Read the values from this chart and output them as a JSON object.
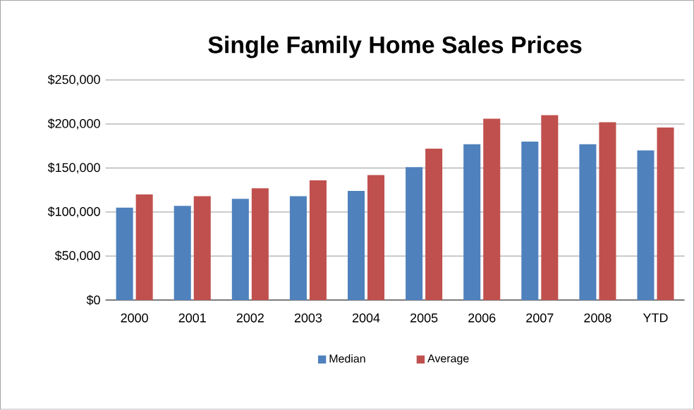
{
  "chart_data": {
    "type": "bar",
    "title": "Single Family Home Sales Prices",
    "categories": [
      "2000",
      "2001",
      "2002",
      "2003",
      "2004",
      "2005",
      "2006",
      "2007",
      "2008",
      "YTD"
    ],
    "series": [
      {
        "name": "Median",
        "color": "#4f81bd",
        "values": [
          105000,
          107000,
          115000,
          118000,
          124000,
          151000,
          177000,
          180000,
          177000,
          170000
        ]
      },
      {
        "name": "Average",
        "color": "#c0504d",
        "values": [
          120000,
          118000,
          127000,
          136000,
          142000,
          172000,
          206000,
          210000,
          202000,
          196000
        ]
      }
    ],
    "ylim": [
      0,
      250000
    ],
    "yticks": [
      {
        "value": 0,
        "label": "$0"
      },
      {
        "value": 50000,
        "label": "$50,000"
      },
      {
        "value": 100000,
        "label": "$100,000"
      },
      {
        "value": 150000,
        "label": "$150,000"
      },
      {
        "value": 200000,
        "label": "$200,000"
      },
      {
        "value": 250000,
        "label": "$250,000"
      }
    ],
    "grid": "y",
    "legend": "bottom"
  }
}
